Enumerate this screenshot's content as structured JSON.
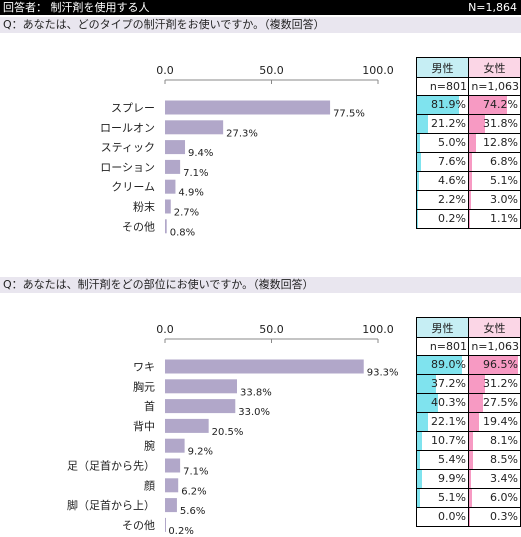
{
  "header": {
    "respondent_label": "回答者： 制汗剤を使用する人",
    "total": "N=1,864"
  },
  "colors": {
    "bar": "#b1a7c9",
    "male_fill": "#7fe3ee",
    "female_fill": "#f79ac3",
    "male_header": "#c6eef4",
    "female_header": "#fbd6e6",
    "question_band": "#e9e6ef"
  },
  "questions": [
    {
      "text": "Q：あなたは、どのタイプの制汗剤をお使いですか。（複数回答）",
      "table": {
        "male_label": "男性",
        "female_label": "女性",
        "male_n": "n=801",
        "female_n": "n=1,063",
        "rows": [
          {
            "male": "81.9%",
            "female": "74.2%"
          },
          {
            "male": "21.2%",
            "female": "31.8%"
          },
          {
            "male": "5.0%",
            "female": "12.8%"
          },
          {
            "male": "7.6%",
            "female": "6.8%"
          },
          {
            "male": "4.6%",
            "female": "5.1%"
          },
          {
            "male": "2.2%",
            "female": "3.0%"
          },
          {
            "male": "0.2%",
            "female": "1.1%"
          }
        ]
      }
    },
    {
      "text": "Q：あなたは、制汗剤をどの部位にお使いですか。（複数回答）",
      "table": {
        "male_label": "男性",
        "female_label": "女性",
        "male_n": "n=801",
        "female_n": "n=1,063",
        "rows": [
          {
            "male": "89.0%",
            "female": "96.5%"
          },
          {
            "male": "37.2%",
            "female": "31.2%"
          },
          {
            "male": "40.3%",
            "female": "27.5%"
          },
          {
            "male": "22.1%",
            "female": "19.4%"
          },
          {
            "male": "10.7%",
            "female": "8.1%"
          },
          {
            "male": "5.4%",
            "female": "8.5%"
          },
          {
            "male": "9.9%",
            "female": "3.4%"
          },
          {
            "male": "5.1%",
            "female": "6.0%"
          },
          {
            "male": "0.0%",
            "female": "0.3%"
          }
        ]
      }
    }
  ],
  "chart_data": [
    {
      "type": "bar",
      "orientation": "horizontal",
      "categories": [
        "スプレー",
        "ロールオン",
        "スティック",
        "ローション",
        "クリーム",
        "粉末",
        "その他"
      ],
      "values": [
        77.5,
        27.3,
        9.4,
        7.1,
        4.9,
        2.7,
        0.8
      ],
      "value_labels": [
        "77.5%",
        "27.3%",
        "9.4%",
        "7.1%",
        "4.9%",
        "2.7%",
        "0.8%"
      ],
      "xlim": [
        0,
        100
      ],
      "ticks": [
        0,
        50,
        100
      ],
      "tick_labels": [
        "0.0",
        "50.0",
        "100.0"
      ],
      "grid": false
    },
    {
      "type": "bar",
      "orientation": "horizontal",
      "categories": [
        "ワキ",
        "胸元",
        "首",
        "背中",
        "腕",
        "足（足首から先）",
        "顔",
        "脚（足首から上）",
        "その他"
      ],
      "values": [
        93.3,
        33.8,
        33.0,
        20.5,
        9.2,
        7.1,
        6.2,
        5.6,
        0.2
      ],
      "value_labels": [
        "93.3%",
        "33.8%",
        "33.0%",
        "20.5%",
        "9.2%",
        "7.1%",
        "6.2%",
        "5.6%",
        "0.2%"
      ],
      "xlim": [
        0,
        100
      ],
      "ticks": [
        0,
        50,
        100
      ],
      "tick_labels": [
        "0.0",
        "50.0",
        "100.0"
      ],
      "grid": false
    }
  ]
}
